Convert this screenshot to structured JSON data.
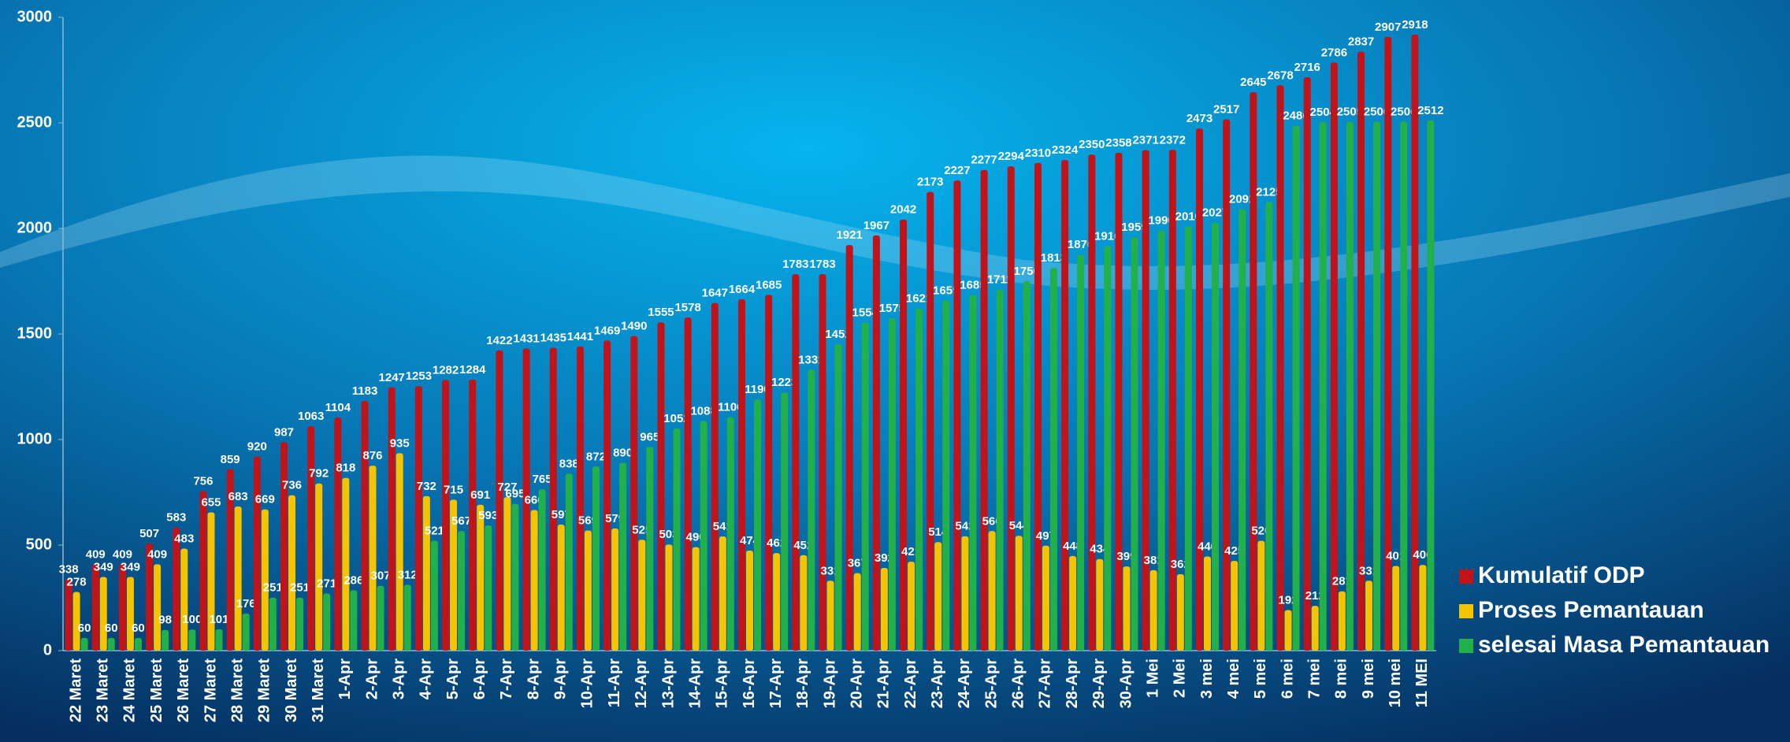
{
  "chart_data": {
    "type": "bar",
    "categories": [
      "22 Maret",
      "23 Maret",
      "24 Maret",
      "25 Maret",
      "26 Maret",
      "27 Maret",
      "28 Maret",
      "29 Maret",
      "30 Maret",
      "31 Maret",
      "1-Apr",
      "2-Apr",
      "3-Apr",
      "4-Apr",
      "5-Apr",
      "6-Apr",
      "7-Apr",
      "8-Apr",
      "9-Apr",
      "10-Apr",
      "11-Apr",
      "12-Apr",
      "13-Apr",
      "14-Apr",
      "15-Apr",
      "16-Apr",
      "17-Apr",
      "18-Apr",
      "19-Apr",
      "20-Apr",
      "21-Apr",
      "22-Apr",
      "23-Apr",
      "24-Apr",
      "25-Apr",
      "26-Apr",
      "27-Apr",
      "28-Apr",
      "29-Apr",
      "30-Apr",
      "1 Mei",
      "2 Mei",
      "3 mei",
      "4 mei",
      "5 mei",
      "6 mei",
      "7 mei",
      "8 mei",
      "9 mei",
      "10 mei",
      "11 MEI"
    ],
    "series": [
      {
        "name": "Kumulatif ODP",
        "color": "#c0141a",
        "values": [
          338,
          409,
          409,
          507,
          583,
          756,
          859,
          920,
          987,
          1063,
          1104,
          1183,
          1247,
          1253,
          1282,
          1284,
          1422,
          1431,
          1435,
          1441,
          1469,
          1490,
          1555,
          1578,
          1647,
          1664,
          1685,
          1783,
          1783,
          1921,
          1967,
          2042,
          2173,
          2227,
          2277,
          2294,
          2310,
          2324,
          2350,
          2358,
          2371,
          2372,
          2473,
          2517,
          2645,
          2678,
          2716,
          2786,
          2837,
          2907,
          2918
        ]
      },
      {
        "name": "Proses Pemantauan",
        "color": "#f5c400",
        "values": [
          278,
          349,
          349,
          409,
          483,
          655,
          683,
          669,
          736,
          792,
          818,
          876,
          935,
          732,
          715,
          691,
          727,
          666,
          597,
          569,
          579,
          525,
          503,
          490,
          541,
          474,
          462,
          452,
          331,
          367,
          392,
          421,
          514,
          542,
          566,
          544,
          497,
          448,
          434,
          399,
          381,
          362,
          446,
          425,
          520,
          192,
          212,
          281,
          331,
          401,
          406
        ]
      },
      {
        "name": "selesai Masa Pemantauan",
        "color": "#22b04a",
        "values": [
          60,
          60,
          60,
          98,
          100,
          101,
          176,
          251,
          251,
          271,
          286,
          307,
          312,
          521,
          567,
          593,
          695,
          765,
          838,
          872,
          890,
          965,
          1052,
          1088,
          1106,
          1190,
          1223,
          1331,
          1452,
          1554,
          1575,
          1621,
          1659,
          1685,
          1711,
          1750,
          1813,
          1876,
          1916,
          1959,
          1990,
          2010,
          2027,
          2092,
          2125,
          2486,
          2504,
          2505,
          2506,
          2506,
          2512
        ]
      }
    ],
    "ylim": [
      0,
      3000
    ],
    "yticks": [
      0,
      500,
      1000,
      1500,
      2000,
      2500,
      3000
    ],
    "legend": "right"
  }
}
